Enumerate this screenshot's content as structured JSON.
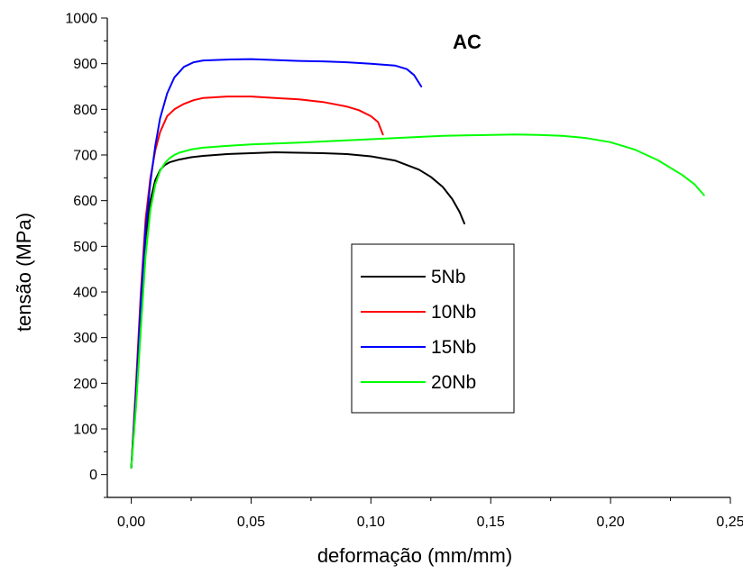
{
  "chart_data": {
    "type": "line",
    "title": "AC",
    "xlabel": "deformação (mm/mm)",
    "ylabel": "tensão (MPa)",
    "xlim": [
      -0.01,
      0.25
    ],
    "ylim": [
      -50,
      1000
    ],
    "grid": false,
    "legend_position": "center-right",
    "x_ticks": [
      0,
      0.05,
      0.1,
      0.15,
      0.2,
      0.25
    ],
    "x_tick_labels": [
      "0,00",
      "0,05",
      "0,10",
      "0,15",
      "0,20",
      "0,25"
    ],
    "y_ticks": [
      0,
      100,
      200,
      300,
      400,
      500,
      600,
      700,
      800,
      900,
      1000
    ],
    "y_tick_labels": [
      "0",
      "100",
      "200",
      "300",
      "400",
      "500",
      "600",
      "700",
      "800",
      "900",
      "1000"
    ],
    "series": [
      {
        "name": "5Nb",
        "color": "#000000",
        "x": [
          0.0,
          0.002,
          0.004,
          0.006,
          0.008,
          0.01,
          0.012,
          0.014,
          0.016,
          0.02,
          0.025,
          0.03,
          0.04,
          0.05,
          0.06,
          0.07,
          0.08,
          0.09,
          0.1,
          0.11,
          0.12,
          0.125,
          0.13,
          0.134,
          0.137,
          0.139
        ],
        "y": [
          15,
          180,
          360,
          520,
          600,
          645,
          667,
          678,
          684,
          690,
          695,
          698,
          702,
          704,
          706,
          705,
          704,
          702,
          697,
          688,
          668,
          652,
          630,
          603,
          575,
          550
        ]
      },
      {
        "name": "10Nb",
        "color": "#ff0000",
        "x": [
          0.0,
          0.002,
          0.004,
          0.006,
          0.008,
          0.01,
          0.012,
          0.015,
          0.018,
          0.022,
          0.026,
          0.03,
          0.04,
          0.05,
          0.06,
          0.07,
          0.08,
          0.09,
          0.095,
          0.1,
          0.103,
          0.105
        ],
        "y": [
          15,
          200,
          400,
          560,
          650,
          710,
          750,
          785,
          800,
          812,
          820,
          825,
          828,
          828,
          825,
          822,
          816,
          806,
          798,
          785,
          772,
          745
        ]
      },
      {
        "name": "15Nb",
        "color": "#0000ff",
        "x": [
          0.0,
          0.002,
          0.004,
          0.006,
          0.008,
          0.01,
          0.012,
          0.015,
          0.018,
          0.022,
          0.026,
          0.03,
          0.035,
          0.04,
          0.05,
          0.06,
          0.07,
          0.08,
          0.09,
          0.1,
          0.11,
          0.115,
          0.118,
          0.121
        ],
        "y": [
          15,
          180,
          380,
          540,
          640,
          720,
          780,
          835,
          870,
          893,
          903,
          907,
          908,
          909,
          910,
          908,
          906,
          905,
          903,
          900,
          896,
          888,
          875,
          850
        ]
      },
      {
        "name": "20Nb",
        "color": "#00ff00",
        "x": [
          0.0,
          0.002,
          0.004,
          0.006,
          0.008,
          0.01,
          0.012,
          0.014,
          0.016,
          0.018,
          0.02,
          0.025,
          0.03,
          0.04,
          0.05,
          0.07,
          0.09,
          0.11,
          0.13,
          0.15,
          0.16,
          0.17,
          0.18,
          0.19,
          0.2,
          0.21,
          0.22,
          0.23,
          0.235,
          0.239
        ],
        "y": [
          15,
          150,
          320,
          480,
          580,
          635,
          665,
          682,
          693,
          700,
          705,
          712,
          716,
          720,
          723,
          727,
          732,
          737,
          742,
          744,
          745,
          744,
          742,
          737,
          728,
          712,
          688,
          656,
          636,
          612
        ]
      }
    ]
  }
}
